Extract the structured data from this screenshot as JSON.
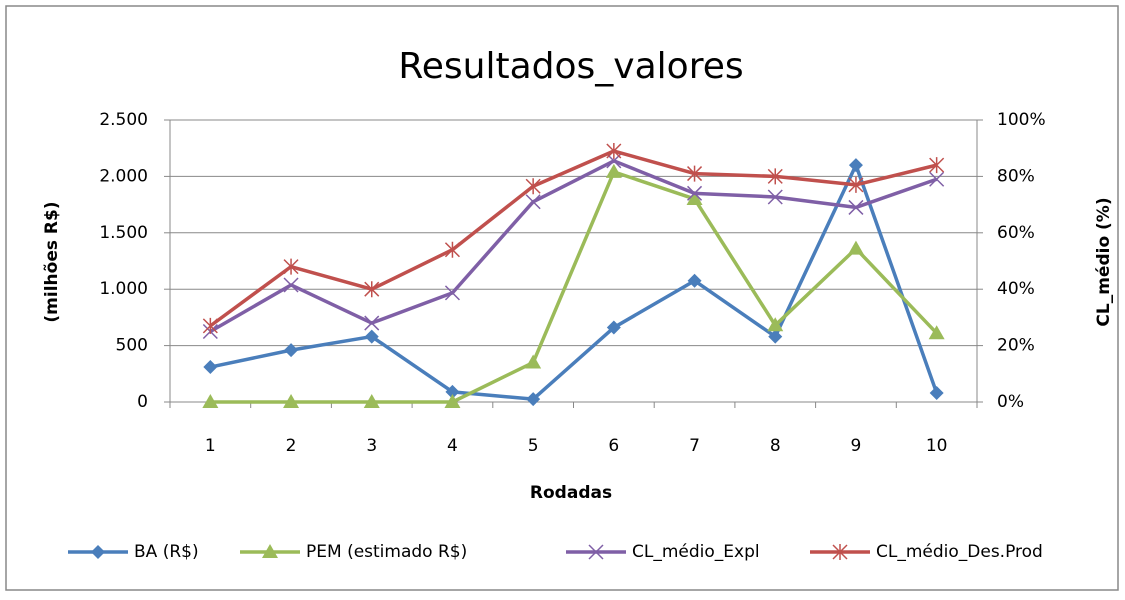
{
  "chart_data": {
    "type": "line",
    "title": "Resultados_valores",
    "x_label": "Rodadas",
    "y_label": "(milhões R$)",
    "y2_label": "CL_médio (%)",
    "categories": [
      "1",
      "2",
      "3",
      "4",
      "5",
      "6",
      "7",
      "8",
      "9",
      "10"
    ],
    "series": [
      {
        "name": "BA (R$)",
        "color": "#4a7ebb",
        "marker": "diamond",
        "values": [
          310,
          460,
          580,
          90,
          25,
          660,
          1075,
          580,
          2100,
          80
        ]
      },
      {
        "name": "PEM (estimado R$)",
        "color": "#9bbb59",
        "marker": "triangle",
        "values": [
          0,
          0,
          0,
          0,
          350,
          2040,
          1800,
          680,
          1360,
          610
        ]
      },
      {
        "name": "CL_médio_Expl",
        "color": "#7f5fa6",
        "marker": "x",
        "axis": "y2",
        "values": [
          25,
          41.5,
          28,
          38.7,
          71,
          85.5,
          74,
          72.7,
          69,
          79
        ]
      },
      {
        "name": "CL_médio_Des.Prod",
        "color": "#c0504d",
        "marker": "star",
        "axis": "y2",
        "values": [
          27,
          48,
          40,
          54,
          76.5,
          89,
          81,
          80,
          77,
          84
        ]
      }
    ],
    "ylim": [
      0,
      2500
    ],
    "yticks": [
      0,
      500,
      {
        "value": 1000,
        "label": "1.000"
      },
      {
        "value": 1500,
        "label": "1.500"
      },
      {
        "value": 2000,
        "label": "2.000"
      },
      {
        "value": 2500,
        "label": "2.500"
      }
    ],
    "y2lim": [
      0,
      100
    ],
    "y2ticks": [
      {
        "value": 0,
        "label": "0%"
      },
      {
        "value": 20,
        "label": "20%"
      },
      {
        "value": 40,
        "label": "40%"
      },
      {
        "value": 60,
        "label": "60%"
      },
      {
        "value": 80,
        "label": "80%"
      },
      {
        "value": 100,
        "label": "100%"
      }
    ],
    "grid": true,
    "legend": "bottom"
  }
}
